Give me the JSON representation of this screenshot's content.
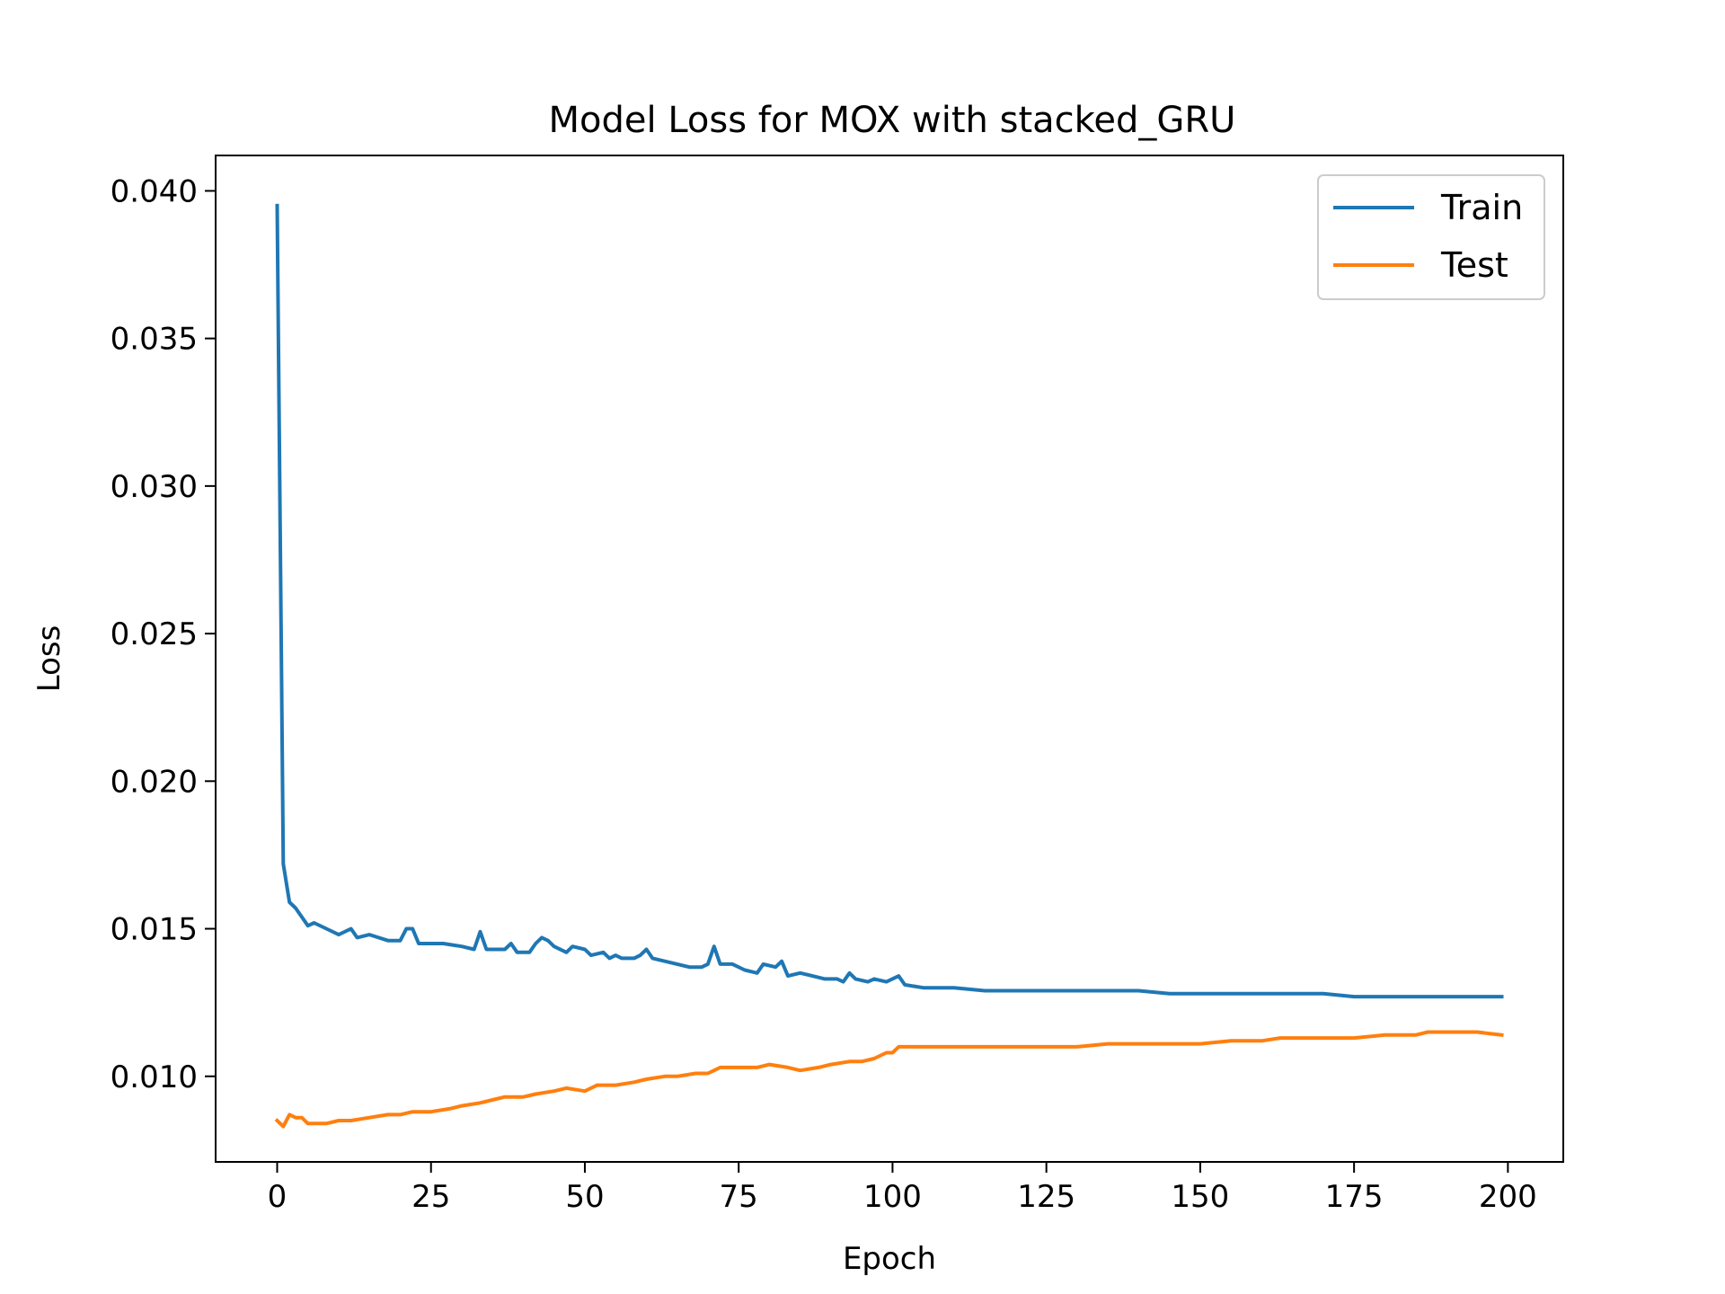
{
  "chart_data": {
    "type": "line",
    "title": "Model Loss for MOX with stacked_GRU",
    "xlabel": "Epoch",
    "ylabel": "Loss",
    "xlim": [
      -10,
      209
    ],
    "ylim": [
      0.0071,
      0.0412
    ],
    "x_ticks": [
      0,
      25,
      50,
      75,
      100,
      125,
      150,
      175,
      200
    ],
    "x_tick_labels": [
      "0",
      "25",
      "50",
      "75",
      "100",
      "125",
      "150",
      "175",
      "200"
    ],
    "y_ticks": [
      0.01,
      0.015,
      0.02,
      0.025,
      0.03,
      0.035,
      0.04
    ],
    "y_tick_labels": [
      "0.010",
      "0.015",
      "0.020",
      "0.025",
      "0.030",
      "0.035",
      "0.040"
    ],
    "grid": false,
    "legend_position": "top-right",
    "series": [
      {
        "name": "Train",
        "color": "#1f77b4",
        "points": [
          [
            0,
            0.0395
          ],
          [
            1,
            0.0172
          ],
          [
            2,
            0.0159
          ],
          [
            3,
            0.0157
          ],
          [
            4,
            0.0154
          ],
          [
            5,
            0.0151
          ],
          [
            6,
            0.0152
          ],
          [
            8,
            0.015
          ],
          [
            10,
            0.0148
          ],
          [
            12,
            0.015
          ],
          [
            13,
            0.0147
          ],
          [
            15,
            0.0148
          ],
          [
            18,
            0.0146
          ],
          [
            20,
            0.0146
          ],
          [
            21,
            0.015
          ],
          [
            22,
            0.015
          ],
          [
            23,
            0.0145
          ],
          [
            25,
            0.0145
          ],
          [
            27,
            0.0145
          ],
          [
            30,
            0.0144
          ],
          [
            32,
            0.0143
          ],
          [
            33,
            0.0149
          ],
          [
            34,
            0.0143
          ],
          [
            36,
            0.0143
          ],
          [
            37,
            0.0143
          ],
          [
            38,
            0.0145
          ],
          [
            39,
            0.0142
          ],
          [
            41,
            0.0142
          ],
          [
            42,
            0.0145
          ],
          [
            43,
            0.0147
          ],
          [
            44,
            0.0146
          ],
          [
            45,
            0.0144
          ],
          [
            47,
            0.0142
          ],
          [
            48,
            0.0144
          ],
          [
            50,
            0.0143
          ],
          [
            51,
            0.0141
          ],
          [
            53,
            0.0142
          ],
          [
            54,
            0.014
          ],
          [
            55,
            0.0141
          ],
          [
            56,
            0.014
          ],
          [
            58,
            0.014
          ],
          [
            59,
            0.0141
          ],
          [
            60,
            0.0143
          ],
          [
            61,
            0.014
          ],
          [
            63,
            0.0139
          ],
          [
            65,
            0.0138
          ],
          [
            67,
            0.0137
          ],
          [
            69,
            0.0137
          ],
          [
            70,
            0.0138
          ],
          [
            71,
            0.0144
          ],
          [
            72,
            0.0138
          ],
          [
            74,
            0.0138
          ],
          [
            76,
            0.0136
          ],
          [
            78,
            0.0135
          ],
          [
            79,
            0.0138
          ],
          [
            81,
            0.0137
          ],
          [
            82,
            0.0139
          ],
          [
            83,
            0.0134
          ],
          [
            85,
            0.0135
          ],
          [
            87,
            0.0134
          ],
          [
            89,
            0.0133
          ],
          [
            91,
            0.0133
          ],
          [
            92,
            0.0132
          ],
          [
            93,
            0.0135
          ],
          [
            94,
            0.0133
          ],
          [
            96,
            0.0132
          ],
          [
            97,
            0.0133
          ],
          [
            99,
            0.0132
          ],
          [
            101,
            0.0134
          ],
          [
            102,
            0.0131
          ],
          [
            105,
            0.013
          ],
          [
            110,
            0.013
          ],
          [
            115,
            0.0129
          ],
          [
            120,
            0.0129
          ],
          [
            125,
            0.0129
          ],
          [
            130,
            0.0129
          ],
          [
            135,
            0.0129
          ],
          [
            140,
            0.0129
          ],
          [
            145,
            0.0128
          ],
          [
            150,
            0.0128
          ],
          [
            155,
            0.0128
          ],
          [
            160,
            0.0128
          ],
          [
            165,
            0.0128
          ],
          [
            170,
            0.0128
          ],
          [
            175,
            0.0127
          ],
          [
            180,
            0.0127
          ],
          [
            185,
            0.0127
          ],
          [
            190,
            0.0127
          ],
          [
            195,
            0.0127
          ],
          [
            199,
            0.0127
          ]
        ]
      },
      {
        "name": "Test",
        "color": "#ff7f0e",
        "points": [
          [
            0,
            0.0085
          ],
          [
            1,
            0.0083
          ],
          [
            2,
            0.0087
          ],
          [
            3,
            0.0086
          ],
          [
            4,
            0.0086
          ],
          [
            5,
            0.0084
          ],
          [
            6,
            0.0084
          ],
          [
            8,
            0.0084
          ],
          [
            10,
            0.0085
          ],
          [
            12,
            0.0085
          ],
          [
            15,
            0.0086
          ],
          [
            18,
            0.0087
          ],
          [
            20,
            0.0087
          ],
          [
            22,
            0.0088
          ],
          [
            25,
            0.0088
          ],
          [
            28,
            0.0089
          ],
          [
            30,
            0.009
          ],
          [
            33,
            0.0091
          ],
          [
            35,
            0.0092
          ],
          [
            37,
            0.0093
          ],
          [
            40,
            0.0093
          ],
          [
            42,
            0.0094
          ],
          [
            45,
            0.0095
          ],
          [
            47,
            0.0096
          ],
          [
            50,
            0.0095
          ],
          [
            52,
            0.0097
          ],
          [
            55,
            0.0097
          ],
          [
            58,
            0.0098
          ],
          [
            60,
            0.0099
          ],
          [
            63,
            0.01
          ],
          [
            65,
            0.01
          ],
          [
            68,
            0.0101
          ],
          [
            70,
            0.0101
          ],
          [
            72,
            0.0103
          ],
          [
            75,
            0.0103
          ],
          [
            78,
            0.0103
          ],
          [
            80,
            0.0104
          ],
          [
            83,
            0.0103
          ],
          [
            85,
            0.0102
          ],
          [
            88,
            0.0103
          ],
          [
            90,
            0.0104
          ],
          [
            93,
            0.0105
          ],
          [
            95,
            0.0105
          ],
          [
            97,
            0.0106
          ],
          [
            99,
            0.0108
          ],
          [
            100,
            0.0108
          ],
          [
            101,
            0.011
          ],
          [
            105,
            0.011
          ],
          [
            110,
            0.011
          ],
          [
            115,
            0.011
          ],
          [
            120,
            0.011
          ],
          [
            125,
            0.011
          ],
          [
            130,
            0.011
          ],
          [
            135,
            0.0111
          ],
          [
            140,
            0.0111
          ],
          [
            145,
            0.0111
          ],
          [
            150,
            0.0111
          ],
          [
            155,
            0.0112
          ],
          [
            160,
            0.0112
          ],
          [
            163,
            0.0113
          ],
          [
            165,
            0.0113
          ],
          [
            170,
            0.0113
          ],
          [
            175,
            0.0113
          ],
          [
            180,
            0.0114
          ],
          [
            185,
            0.0114
          ],
          [
            187,
            0.0115
          ],
          [
            190,
            0.0115
          ],
          [
            195,
            0.0115
          ],
          [
            199,
            0.0114
          ]
        ]
      }
    ]
  }
}
